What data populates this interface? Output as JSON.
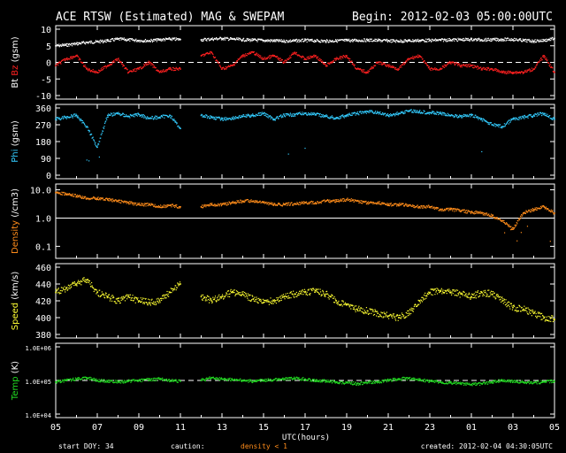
{
  "header": {
    "title": "ACE RTSW (Estimated) MAG & SWEPAM",
    "begin": "Begin: 2012-02-03 05:00:00UTC"
  },
  "footer": {
    "start_doy": "start DOY:  34",
    "caution": "caution:",
    "density_note": "density < 1",
    "created": "created: 2012-02-04 04:30:05UTC",
    "xlabel": "UTC(hours)"
  },
  "colors": {
    "bt": "#ffffff",
    "bz": "#ff2020",
    "phi": "#33ccff",
    "density": "#ff8c1a",
    "speed": "#ffff33",
    "temp": "#22dd22",
    "frame": "#ffffff"
  },
  "chart_data": {
    "type": "scatter",
    "x_ticks": [
      "05",
      "07",
      "09",
      "11",
      "13",
      "15",
      "17",
      "19",
      "21",
      "23",
      "01",
      "03",
      "05"
    ],
    "x_range_hours": [
      0,
      24
    ],
    "panels": [
      {
        "id": "mag",
        "ylabel_parts": [
          {
            "text": "Bt",
            "color": "#ffffff"
          },
          {
            "text": "Bz",
            "color": "#ff2020"
          },
          {
            "text": "(gsm)",
            "color": "#ffffff"
          }
        ],
        "ylim": [
          -10,
          10
        ],
        "ticks": [
          "10",
          "5",
          "0",
          "-5",
          "-10"
        ],
        "tick_values": [
          10,
          5,
          0,
          -5,
          -10
        ],
        "dashed_line": 0,
        "series": [
          {
            "name": "Bt",
            "color": "#ffffff",
            "x": [
              0,
              0.5,
              1,
              1.5,
              2,
              2.5,
              3,
              3.5,
              4,
              4.5,
              5,
              5.5,
              6,
              7,
              7.5,
              8,
              8.5,
              9,
              9.5,
              10,
              10.5,
              11,
              11.5,
              12,
              12.5,
              13,
              13.5,
              14,
              14.5,
              15,
              15.5,
              16,
              16.5,
              17,
              17.5,
              18,
              18.5,
              19,
              19.5,
              20,
              20.5,
              21,
              21.5,
              22,
              22.5,
              23,
              23.5,
              24
            ],
            "y": [
              5,
              5.2,
              5.6,
              6,
              6.2,
              6.5,
              7,
              6.8,
              6.6,
              6.5,
              6.8,
              7,
              6.9,
              6.8,
              7,
              7.2,
              7,
              6.8,
              6.7,
              6.6,
              6.5,
              6.4,
              6.5,
              6.6,
              6.5,
              6.4,
              6.5,
              6.6,
              6.6,
              6.7,
              6.6,
              6.5,
              6.4,
              6.5,
              6.6,
              6.6,
              6.7,
              6.8,
              6.8,
              6.9,
              6.8,
              6.8,
              6.9,
              6.9,
              6.6,
              6.4,
              6.6,
              7.2
            ]
          },
          {
            "name": "Bz",
            "color": "#ff2020",
            "x": [
              0,
              0.5,
              1,
              1.5,
              2,
              2.5,
              3,
              3.5,
              4,
              4.5,
              5,
              5.5,
              6,
              7,
              7.5,
              8,
              8.5,
              9,
              9.5,
              10,
              10.5,
              11,
              11.5,
              12,
              12.5,
              13,
              13.5,
              14,
              14.5,
              15,
              15.5,
              16,
              16.5,
              17,
              17.5,
              18,
              18.5,
              19,
              19.5,
              20,
              20.5,
              21,
              21.5,
              22,
              22.5,
              23,
              23.5,
              24
            ],
            "y": [
              -1,
              1,
              2,
              -2,
              -3,
              -1,
              1,
              -3,
              -2,
              0,
              -3,
              -2,
              -2,
              2,
              3,
              -2,
              -1,
              2,
              3,
              1,
              2,
              0,
              3,
              1,
              2,
              -1,
              1,
              2,
              -2,
              -3,
              0,
              -1,
              -2,
              1,
              2,
              -2,
              -2,
              0,
              -1,
              -1,
              -2,
              -2,
              -3,
              -3,
              -3,
              -2,
              2,
              -3
            ]
          }
        ]
      },
      {
        "id": "phi",
        "ylabel_parts": [
          {
            "text": "Phi",
            "color": "#33ccff"
          },
          {
            "text": "(gsm)",
            "color": "#ffffff"
          }
        ],
        "ylim": [
          0,
          360
        ],
        "ticks": [
          "360",
          "270",
          "180",
          "90",
          "0"
        ],
        "tick_values": [
          360,
          270,
          180,
          90,
          0
        ],
        "series": [
          {
            "name": "Phi",
            "color": "#33ccff",
            "x": [
              0,
              0.5,
              1,
              1.5,
              2,
              2.5,
              3,
              3.5,
              4,
              4.5,
              5,
              5.5,
              6,
              7,
              7.5,
              8,
              8.5,
              9,
              9.5,
              10,
              10.5,
              11,
              11.5,
              12,
              12.5,
              13,
              13.5,
              14,
              14.5,
              15,
              15.5,
              16,
              16.5,
              17,
              17.5,
              18,
              18.5,
              19,
              19.5,
              20,
              20.5,
              21,
              21.5,
              22,
              22.5,
              23,
              23.5,
              24
            ],
            "y": [
              300,
              310,
              320,
              260,
              150,
              320,
              330,
              315,
              325,
              305,
              310,
              320,
              250,
              320,
              310,
              300,
              305,
              315,
              320,
              330,
              300,
              320,
              325,
              330,
              325,
              315,
              305,
              320,
              330,
              340,
              335,
              320,
              330,
              345,
              340,
              335,
              330,
              320,
              315,
              320,
              300,
              270,
              260,
              300,
              310,
              320,
              330,
              300
            ]
          }
        ]
      },
      {
        "id": "density",
        "ylabel_parts": [
          {
            "text": "Density",
            "color": "#ff8c1a"
          },
          {
            "text": "(/cm3)",
            "color": "#ffffff"
          }
        ],
        "ylim": [
          0.05,
          12
        ],
        "log": true,
        "ticks": [
          "10.0",
          "1.0",
          "0.1"
        ],
        "tick_values": [
          10,
          1,
          0.1
        ],
        "solid_line": 1,
        "series": [
          {
            "name": "Density",
            "color": "#ff8c1a",
            "x": [
              0,
              0.5,
              1,
              1.5,
              2,
              2.5,
              3,
              3.5,
              4,
              4.5,
              5,
              5.5,
              6,
              7,
              7.5,
              8,
              8.5,
              9,
              9.5,
              10,
              10.5,
              11,
              11.5,
              12,
              12.5,
              13,
              13.5,
              14,
              14.5,
              15,
              15.5,
              16,
              16.5,
              17,
              17.5,
              18,
              18.5,
              19,
              19.5,
              20,
              20.5,
              21,
              21.5,
              22,
              22.5,
              23,
              23.5,
              24
            ],
            "y": [
              8,
              7,
              6,
              5,
              5,
              4.5,
              4,
              3.5,
              3,
              3,
              2.5,
              2.8,
              2.5,
              2.5,
              3,
              3,
              3.5,
              4,
              4,
              3.5,
              3,
              3,
              3.2,
              3.5,
              3.5,
              4,
              4,
              4.5,
              4,
              3.5,
              3.5,
              3,
              3,
              2.8,
              2.5,
              2.5,
              2,
              2,
              1.8,
              1.6,
              1.5,
              1.2,
              0.8,
              0.4,
              1.5,
              2,
              2.5,
              1.5
            ]
          }
        ]
      },
      {
        "id": "speed",
        "ylabel_parts": [
          {
            "text": "Speed",
            "color": "#ffff33"
          },
          {
            "text": "(km/s)",
            "color": "#ffffff"
          }
        ],
        "ylim": [
          380,
          460
        ],
        "ticks": [
          "460",
          "440",
          "420",
          "400",
          "380"
        ],
        "tick_values": [
          460,
          440,
          420,
          400,
          380
        ],
        "series": [
          {
            "name": "Speed",
            "color": "#ffff33",
            "x": [
              0,
              0.5,
              1,
              1.5,
              2,
              2.5,
              3,
              3.5,
              4,
              4.5,
              5,
              5.5,
              6,
              7,
              7.5,
              8,
              8.5,
              9,
              9.5,
              10,
              10.5,
              11,
              11.5,
              12,
              12.5,
              13,
              13.5,
              14,
              14.5,
              15,
              15.5,
              16,
              16.5,
              17,
              17.5,
              18,
              18.5,
              19,
              19.5,
              20,
              20.5,
              21,
              21.5,
              22,
              22.5,
              23,
              23.5,
              24
            ],
            "y": [
              430,
              435,
              440,
              445,
              430,
              425,
              420,
              425,
              420,
              418,
              420,
              430,
              440,
              425,
              420,
              425,
              430,
              428,
              422,
              418,
              420,
              425,
              428,
              430,
              432,
              428,
              420,
              415,
              410,
              408,
              405,
              402,
              400,
              405,
              420,
              430,
              432,
              430,
              428,
              425,
              430,
              428,
              420,
              412,
              410,
              405,
              400,
              398
            ]
          }
        ]
      },
      {
        "id": "temp",
        "ylabel_parts": [
          {
            "text": "Temp",
            "color": "#22dd22"
          },
          {
            "text": "(K)",
            "color": "#ffffff"
          }
        ],
        "ylim": [
          10000,
          1000000
        ],
        "log": true,
        "ticks": [
          "1.0E+06",
          "1.0E+05",
          "1.0E+04"
        ],
        "tick_values": [
          1000000,
          100000,
          10000
        ],
        "dashed_line": 100000,
        "series": [
          {
            "name": "Temp",
            "color": "#22dd22",
            "x": [
              0,
              0.5,
              1,
              1.5,
              2,
              2.5,
              3,
              3.5,
              4,
              4.5,
              5,
              5.5,
              6,
              7,
              7.5,
              8,
              8.5,
              9,
              9.5,
              10,
              10.5,
              11,
              11.5,
              12,
              12.5,
              13,
              13.5,
              14,
              14.5,
              15,
              15.5,
              16,
              16.5,
              17,
              17.5,
              18,
              18.5,
              19,
              19.5,
              20,
              20.5,
              21,
              21.5,
              22,
              22.5,
              23,
              23.5,
              24
            ],
            "y": [
              90000,
              100000,
              110000,
              120000,
              100000,
              95000,
              90000,
              95000,
              100000,
              105000,
              110000,
              100000,
              95000,
              100000,
              120000,
              110000,
              105000,
              100000,
              95000,
              100000,
              105000,
              110000,
              115000,
              110000,
              100000,
              95000,
              90000,
              85000,
              80000,
              85000,
              90000,
              100000,
              110000,
              115000,
              105000,
              95000,
              90000,
              85000,
              80000,
              75000,
              80000,
              90000,
              100000,
              95000,
              90000,
              85000,
              90000,
              95000
            ]
          }
        ]
      }
    ]
  }
}
